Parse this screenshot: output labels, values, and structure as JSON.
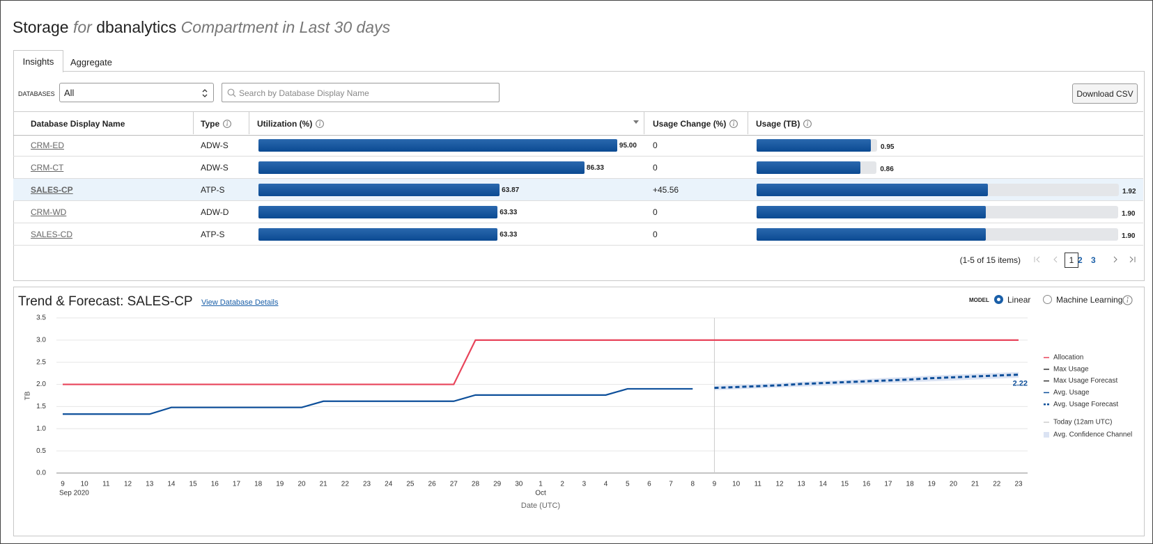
{
  "header": {
    "title": "Storage",
    "for": "for",
    "compartment": "dbanalytics",
    "suffix": "Compartment in Last 30 days"
  },
  "tabs": [
    "Insights",
    "Aggregate"
  ],
  "filters": {
    "label": "DATABASES",
    "select": "All",
    "search_placeholder": "Search by Database Display Name",
    "download": "Download CSV"
  },
  "table": {
    "columns": [
      "Database Display Name",
      "Type",
      "Utilization (%)",
      "Usage Change (%)",
      "Usage (TB)"
    ],
    "rows": [
      {
        "name": "CRM-ED",
        "type": "ADW-S",
        "utilization": 95,
        "utilization_label": "95.00",
        "usage_change": "0",
        "usage": 0.95,
        "usage_label": "0.95",
        "selected": false
      },
      {
        "name": "CRM-CT",
        "type": "ADW-S",
        "utilization": 86.33,
        "utilization_label": "86.33",
        "usage_change": "0",
        "usage": 0.86,
        "usage_label": "0.86",
        "selected": false
      },
      {
        "name": "SALES-CP",
        "type": "ATP-S",
        "utilization": 63.87,
        "utilization_label": "63.87",
        "usage_change": "+45.56",
        "usage": 1.92,
        "usage_label": "1.92",
        "selected": true
      },
      {
        "name": "CRM-WD",
        "type": "ADW-D",
        "utilization": 63.33,
        "utilization_label": "63.33",
        "usage_change": "0",
        "usage": 1.9,
        "usage_label": "1.90",
        "selected": false
      },
      {
        "name": "SALES-CD",
        "type": "ATP-S",
        "utilization": 63.33,
        "utilization_label": "63.33",
        "usage_change": "0",
        "usage": 1.9,
        "usage_label": "1.90",
        "selected": false
      }
    ]
  },
  "pagination": {
    "summary": "(1-5 of 15 items)",
    "pages": [
      1,
      2,
      3
    ],
    "current": 1
  },
  "chart_panel": {
    "link": "View Database Details",
    "model_label": "MODEL",
    "models": [
      "Linear",
      "Machine Learning"
    ],
    "selected_model": 0
  },
  "chart_data": {
    "type": "line",
    "title": "Trend & Forecast: SALES-CP",
    "y_label": "TB",
    "x_label": "Date (UTC)",
    "categories": [
      "9",
      "10",
      "11",
      "12",
      "13",
      "14",
      "15",
      "16",
      "17",
      "18",
      "19",
      "20",
      "21",
      "22",
      "23",
      "24",
      "25",
      "26",
      "27",
      "28",
      "29",
      "30",
      "1",
      "2",
      "3",
      "4",
      "5",
      "6",
      "7",
      "8",
      "9",
      "10",
      "11",
      "12",
      "13",
      "14",
      "15",
      "16",
      "17",
      "18",
      "19",
      "20",
      "21",
      "22",
      "23"
    ],
    "x_sublabels": [
      "Sep 2020",
      null,
      null,
      null,
      null,
      null,
      null,
      null,
      null,
      null,
      null,
      null,
      null,
      null,
      null,
      null,
      null,
      null,
      null,
      null,
      null,
      null,
      "Oct",
      null,
      null,
      null,
      null,
      null,
      null,
      null,
      null,
      null,
      null,
      null,
      null,
      null,
      null,
      null,
      null,
      null,
      null,
      null,
      null,
      null,
      null
    ],
    "ylim": [
      0,
      3.5
    ],
    "yticks": [
      {
        "value": 0,
        "label": "0.0"
      },
      0.5,
      {
        "value": 1,
        "label": "1.0"
      },
      1.5,
      {
        "value": 2,
        "label": "2.0"
      },
      2.5,
      {
        "value": 3,
        "label": "3.0"
      },
      3.5
    ],
    "grid": true,
    "today_index": 30,
    "today_label": "Today (12am UTC)",
    "today_color": "#cccccc",
    "series": [
      {
        "name": "Allocation",
        "color": "#e8445a",
        "dash": false,
        "values": [
          2,
          2,
          2,
          2,
          2,
          2,
          2,
          2,
          2,
          2,
          2,
          2,
          2,
          2,
          2,
          2,
          2,
          2,
          2,
          3,
          3,
          3,
          3,
          3,
          3,
          3,
          3,
          3,
          3,
          3,
          3,
          3,
          3,
          3,
          3,
          3,
          3,
          3,
          3,
          3,
          3,
          3,
          3,
          3,
          3
        ]
      },
      {
        "name": "Max Usage",
        "color": "#333333",
        "dash": false,
        "values": [
          null,
          null,
          null,
          null,
          null,
          null,
          null,
          null,
          null,
          null,
          null,
          null,
          null,
          null,
          null,
          null,
          null,
          null,
          null,
          null,
          null,
          null,
          null,
          null,
          null,
          null,
          null,
          null,
          null,
          null,
          null,
          null,
          null,
          null,
          null,
          null,
          null,
          null,
          null,
          null,
          null,
          null,
          null,
          null,
          null
        ]
      },
      {
        "name": "Max Usage Forecast",
        "color": "#333333",
        "dash": false,
        "values": [
          null,
          null,
          null,
          null,
          null,
          null,
          null,
          null,
          null,
          null,
          null,
          null,
          null,
          null,
          null,
          null,
          null,
          null,
          null,
          null,
          null,
          null,
          null,
          null,
          null,
          null,
          null,
          null,
          null,
          null,
          null,
          null,
          null,
          null,
          null,
          null,
          null,
          null,
          null,
          null,
          null,
          null,
          null,
          null,
          null
        ]
      },
      {
        "name": "Avg. Usage",
        "color": "#0d4f9a",
        "dash": false,
        "values": [
          1.33,
          1.33,
          1.33,
          1.33,
          1.33,
          1.48,
          1.48,
          1.48,
          1.48,
          1.48,
          1.48,
          1.48,
          1.62,
          1.62,
          1.62,
          1.62,
          1.62,
          1.62,
          1.62,
          1.76,
          1.76,
          1.76,
          1.76,
          1.76,
          1.76,
          1.76,
          1.9,
          1.9,
          1.9,
          1.9,
          null,
          null,
          null,
          null,
          null,
          null,
          null,
          null,
          null,
          null,
          null,
          null,
          null,
          null,
          null
        ]
      },
      {
        "name": "Avg. Usage Forecast",
        "color": "#0d4f9a",
        "dash": true,
        "values": [
          null,
          null,
          null,
          null,
          null,
          null,
          null,
          null,
          null,
          null,
          null,
          null,
          null,
          null,
          null,
          null,
          null,
          null,
          null,
          null,
          null,
          null,
          null,
          null,
          null,
          null,
          null,
          null,
          null,
          null,
          1.92,
          1.94,
          1.96,
          1.98,
          2.01,
          2.03,
          2.05,
          2.07,
          2.09,
          2.11,
          2.14,
          2.16,
          2.18,
          2.2,
          2.22
        ],
        "value_labels": [
          null,
          null,
          null,
          null,
          null,
          null,
          null,
          null,
          null,
          null,
          null,
          null,
          null,
          null,
          null,
          null,
          null,
          null,
          null,
          null,
          null,
          null,
          null,
          null,
          null,
          null,
          null,
          null,
          null,
          null,
          null,
          null,
          null,
          null,
          null,
          null,
          null,
          null,
          null,
          null,
          null,
          null,
          null,
          null,
          "2.22"
        ]
      }
    ],
    "band": {
      "name": "Avg. Confidence Channel",
      "color": "#dbe3f3",
      "lower": [
        null,
        null,
        null,
        null,
        null,
        null,
        null,
        null,
        null,
        null,
        null,
        null,
        null,
        null,
        null,
        null,
        null,
        null,
        null,
        null,
        null,
        null,
        null,
        null,
        null,
        null,
        null,
        null,
        null,
        null,
        1.87,
        1.89,
        1.91,
        1.93,
        1.95,
        1.97,
        1.99,
        2.01,
        2.03,
        2.05,
        2.07,
        2.09,
        2.11,
        2.13,
        2.15
      ],
      "upper": [
        null,
        null,
        null,
        null,
        null,
        null,
        null,
        null,
        null,
        null,
        null,
        null,
        null,
        null,
        null,
        null,
        null,
        null,
        null,
        null,
        null,
        null,
        null,
        null,
        null,
        null,
        null,
        null,
        null,
        null,
        1.97,
        1.99,
        2.01,
        2.03,
        2.06,
        2.08,
        2.1,
        2.12,
        2.15,
        2.17,
        2.2,
        2.22,
        2.24,
        2.26,
        2.28
      ]
    }
  }
}
